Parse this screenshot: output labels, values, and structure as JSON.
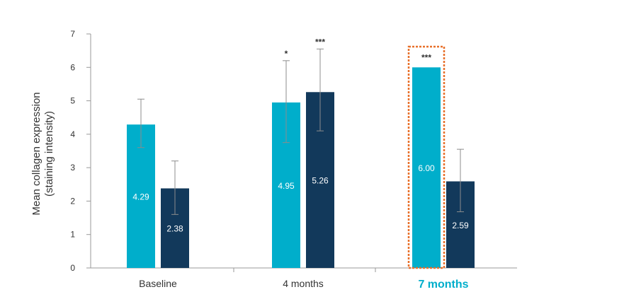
{
  "chart_data": {
    "type": "bar",
    "title": "",
    "xlabel": "",
    "ylabel": [
      "Mean collagen expression",
      "(staining intensity)"
    ],
    "ylim": [
      0,
      7
    ],
    "yticks": [
      "0",
      "1",
      "2",
      "3",
      "4",
      "5",
      "6",
      "7"
    ],
    "categories": [
      "Baseline",
      "4 months",
      "7 months"
    ],
    "highlight_category": "7 months",
    "series": [
      {
        "color": "#00aecb",
        "values": [
          4.29,
          4.95,
          6.0
        ],
        "labels": [
          "4.29",
          "4.95",
          "6.00"
        ],
        "error_upper": [
          5.05,
          6.2,
          6.0
        ],
        "error_lower": [
          3.6,
          3.75,
          6.0
        ],
        "significance": [
          "",
          "*",
          "***"
        ]
      },
      {
        "color": "#12395b",
        "values": [
          2.38,
          5.26,
          2.59
        ],
        "labels": [
          "2.38",
          "5.26",
          "2.59"
        ],
        "error_upper": [
          3.2,
          6.55,
          3.55
        ],
        "error_lower": [
          1.6,
          4.1,
          1.68
        ],
        "significance": [
          "",
          "***",
          ""
        ]
      }
    ],
    "highlight_color": "#e8702a",
    "grid": false,
    "legend": "none"
  }
}
